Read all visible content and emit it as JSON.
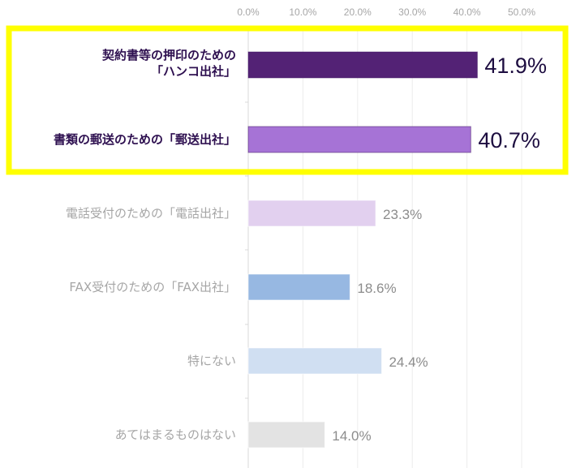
{
  "chart_data": {
    "type": "bar",
    "orientation": "horizontal",
    "categories": [
      [
        "契約書等の押印のための",
        "「ハンコ出社」"
      ],
      [
        "書類の郵送のための「郵送出社」"
      ],
      [
        "電話受付のための「電話出社」"
      ],
      [
        "FAX受付のための「FAX出社」"
      ],
      [
        "特にない"
      ],
      [
        "あてはまるものはない"
      ]
    ],
    "values": [
      41.9,
      40.7,
      23.3,
      18.6,
      24.4,
      14.0
    ],
    "value_labels": [
      "41.9%",
      "40.7%",
      "23.3%",
      "18.6%",
      "24.4%",
      "14.0%"
    ],
    "colors": [
      "#532275",
      "#a673d6",
      "#e2d0ef",
      "#97b8e2",
      "#d0dff2",
      "#e3e3e3"
    ],
    "highlighted": [
      true,
      true,
      false,
      false,
      false,
      false
    ],
    "highlight_color": "#ffff00",
    "xticks": [
      "0.0%",
      "10.0%",
      "20.0%",
      "30.0%",
      "40.0%",
      "50.0%"
    ],
    "xlim": [
      0,
      50
    ],
    "xaxis_position": "top",
    "grid": true
  }
}
